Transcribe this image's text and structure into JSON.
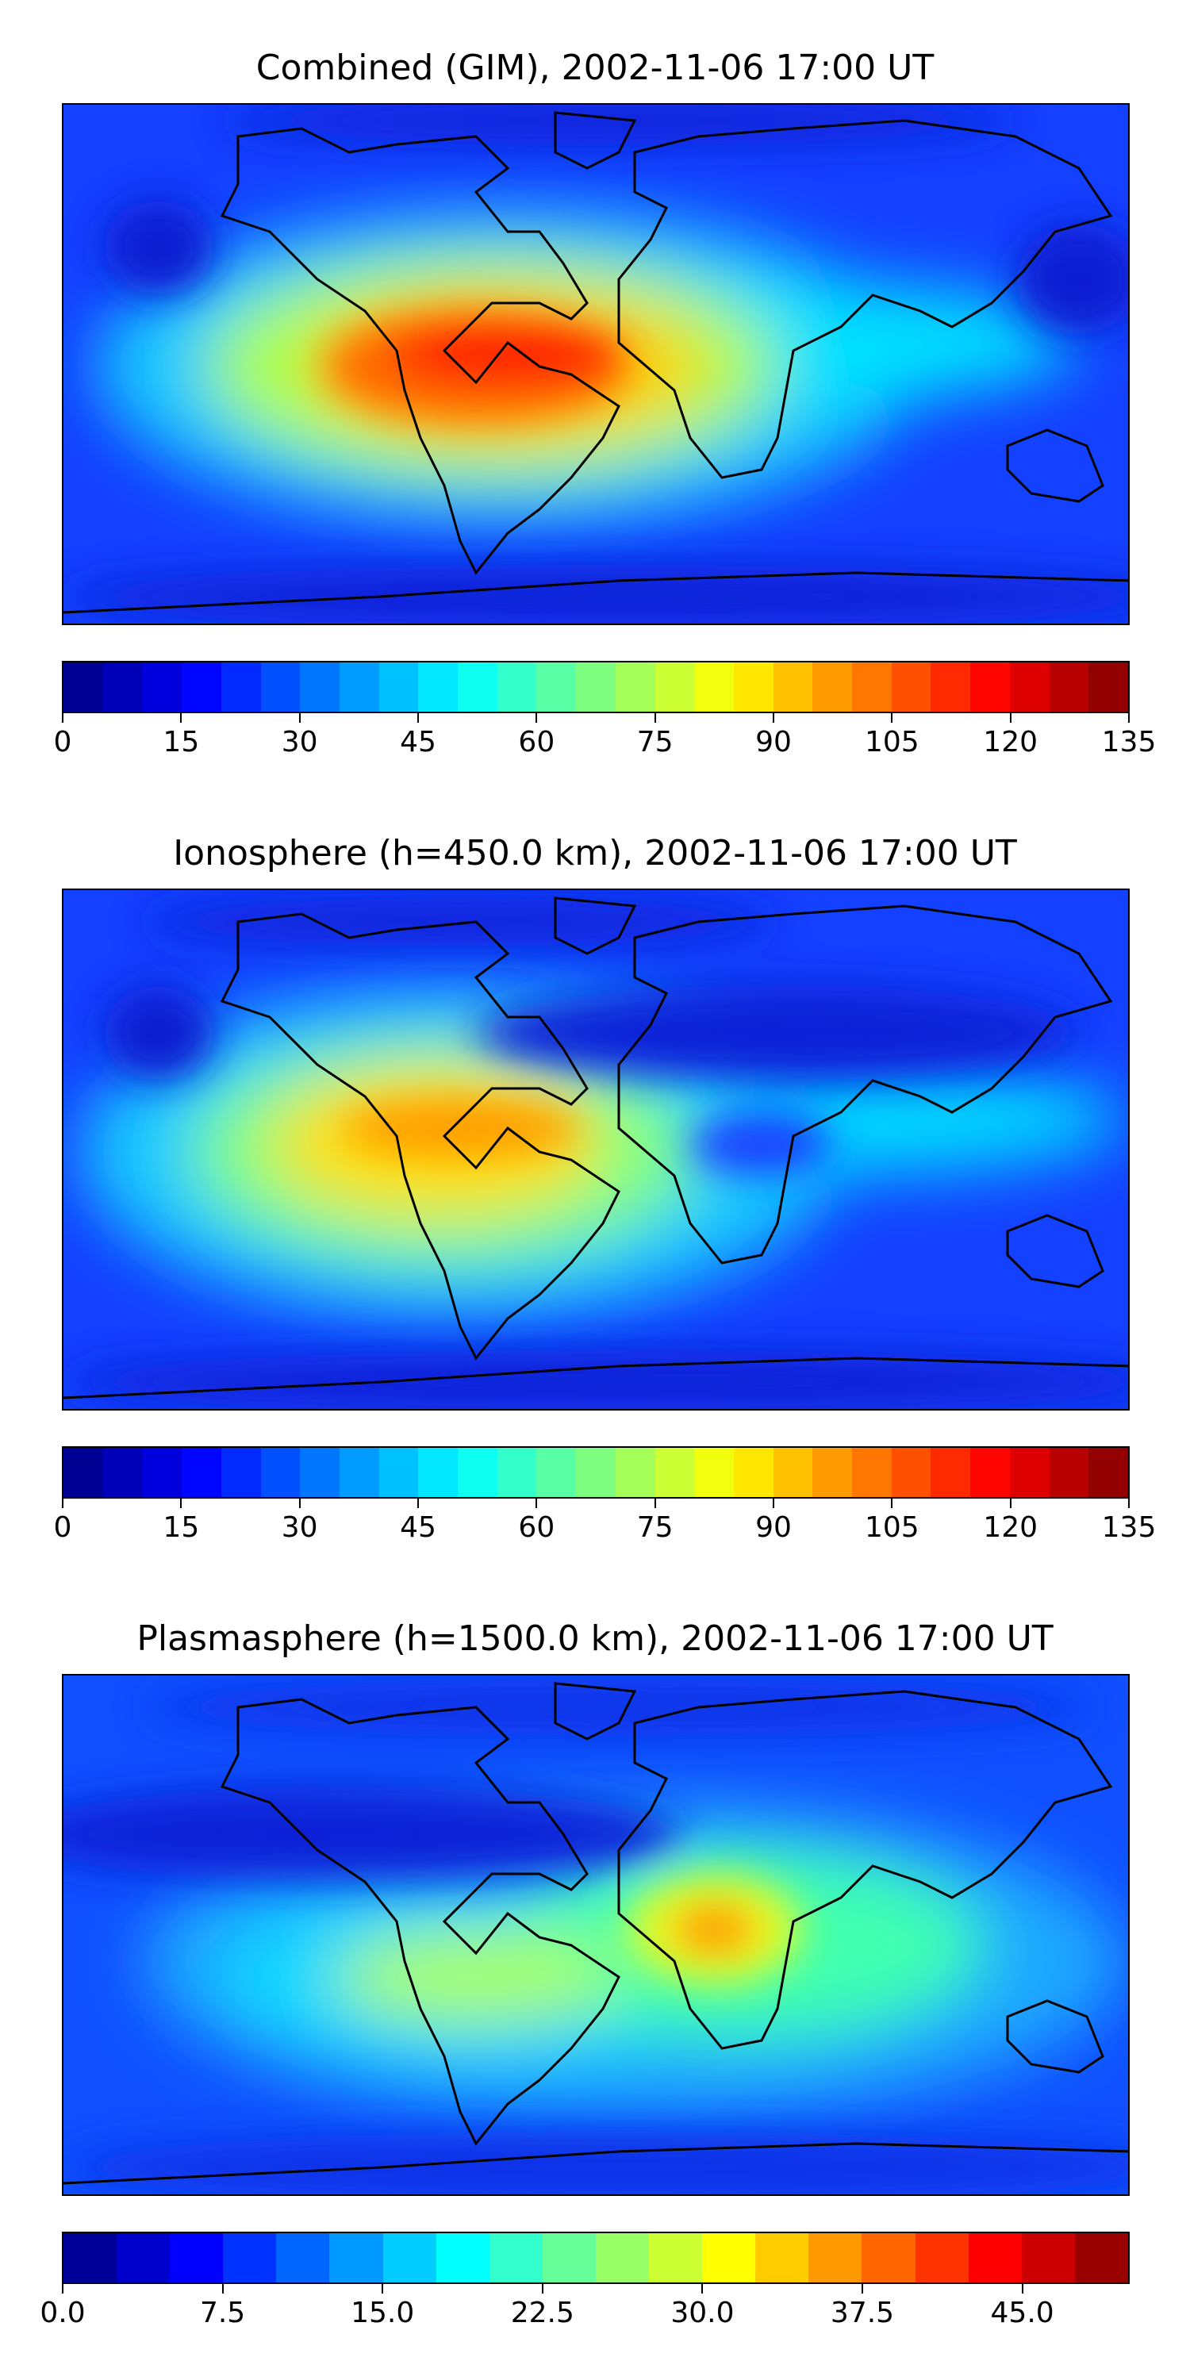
{
  "panels": [
    {
      "title": "Combined (GIM), 2002-11-06 17:00 UT",
      "colorbar": {
        "min": 0,
        "max": 135,
        "ticks": [
          "0",
          "15",
          "30",
          "45",
          "60",
          "75",
          "90",
          "105",
          "120",
          "135"
        ],
        "levels": 27
      }
    },
    {
      "title": "Ionosphere  (h=450.0 km), 2002-11-06 17:00 UT",
      "colorbar": {
        "min": 0,
        "max": 135,
        "ticks": [
          "0",
          "15",
          "30",
          "45",
          "60",
          "75",
          "90",
          "105",
          "120",
          "135"
        ],
        "levels": 27
      }
    },
    {
      "title": "Plasmasphere (h=1500.0 km), 2002-11-06 17:00 UT",
      "colorbar": {
        "min": 0.0,
        "max": 50.0,
        "ticks": [
          "0.0",
          "7.5",
          "15.0",
          "22.5",
          "30.0",
          "37.5",
          "45.0"
        ],
        "levels": 20
      }
    }
  ],
  "colormap": {
    "name": "jet",
    "stops": [
      "#00007f",
      "#0000ff",
      "#007fff",
      "#00ffff",
      "#7fff7f",
      "#ffff00",
      "#ff7f00",
      "#ff0000",
      "#7f0000"
    ]
  }
}
